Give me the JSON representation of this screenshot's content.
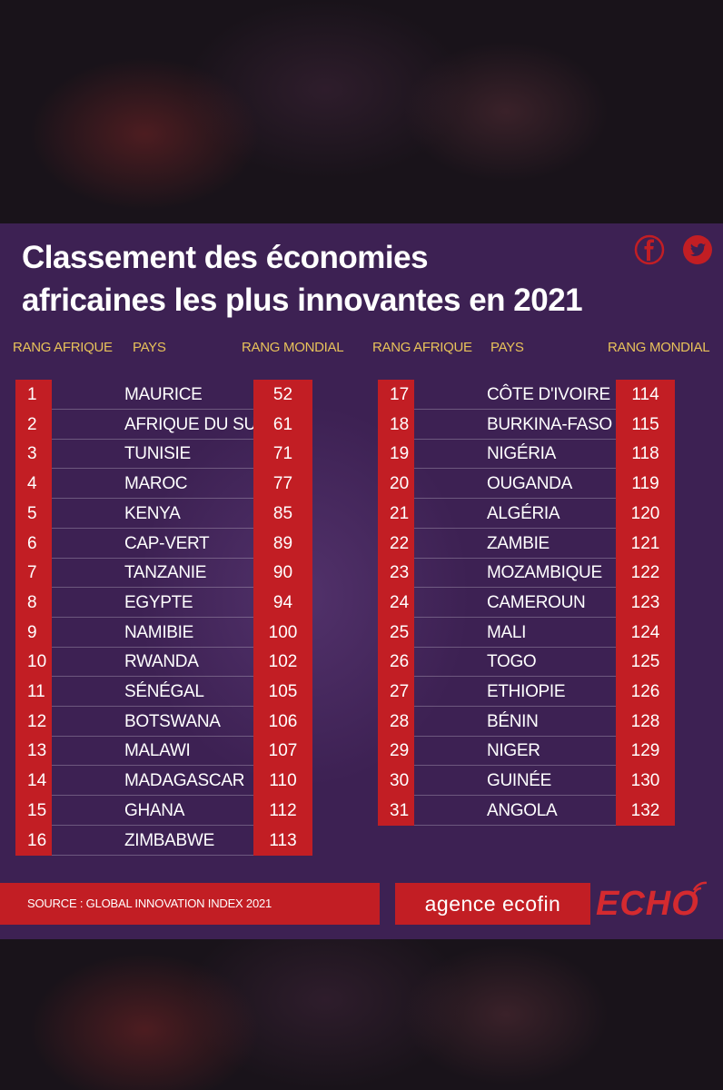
{
  "title_line1": "Classement des économies",
  "title_line2": "africaines les plus innovantes en 2021",
  "headers": {
    "rang_afrique": "RANG AFRIQUE",
    "pays": "PAYS",
    "rang_mondial": "RANG MONDIAL"
  },
  "left_rows": [
    {
      "rank": "1",
      "country": "MAURICE",
      "world": "52"
    },
    {
      "rank": "2",
      "country": "AFRIQUE DU SUD",
      "world": "61"
    },
    {
      "rank": "3",
      "country": "TUNISIE",
      "world": "71"
    },
    {
      "rank": "4",
      "country": "MAROC",
      "world": "77"
    },
    {
      "rank": "5",
      "country": "KENYA",
      "world": "85"
    },
    {
      "rank": "6",
      "country": "CAP-VERT",
      "world": "89"
    },
    {
      "rank": "7",
      "country": "TANZANIE",
      "world": "90"
    },
    {
      "rank": "8",
      "country": "EGYPTE",
      "world": "94"
    },
    {
      "rank": "9",
      "country": "NAMIBIE",
      "world": "100"
    },
    {
      "rank": "10",
      "country": "RWANDA",
      "world": "102"
    },
    {
      "rank": "11",
      "country": "SÉNÉGAL",
      "world": "105"
    },
    {
      "rank": "12",
      "country": "BOTSWANA",
      "world": "106"
    },
    {
      "rank": "13",
      "country": "MALAWI",
      "world": "107"
    },
    {
      "rank": "14",
      "country": "MADAGASCAR",
      "world": "110"
    },
    {
      "rank": "15",
      "country": "GHANA",
      "world": "112"
    },
    {
      "rank": "16",
      "country": "ZIMBABWE",
      "world": "113"
    }
  ],
  "right_rows": [
    {
      "rank": "17",
      "country": "CÔTE D'IVOIRE",
      "world": "114"
    },
    {
      "rank": "18",
      "country": "BURKINA-FASO",
      "world": "115"
    },
    {
      "rank": "19",
      "country": "NIGÉRIA",
      "world": "118"
    },
    {
      "rank": "20",
      "country": "OUGANDA",
      "world": "119"
    },
    {
      "rank": "21",
      "country": "ALGÉRIA",
      "world": "120"
    },
    {
      "rank": "22",
      "country": "ZAMBIE",
      "world": "121"
    },
    {
      "rank": "23",
      "country": "MOZAMBIQUE",
      "world": "122"
    },
    {
      "rank": "24",
      "country": "CAMEROUN",
      "world": "123"
    },
    {
      "rank": "25",
      "country": "MALI",
      "world": "124"
    },
    {
      "rank": "26",
      "country": "TOGO",
      "world": "125"
    },
    {
      "rank": "27",
      "country": "ETHIOPIE",
      "world": "126"
    },
    {
      "rank": "28",
      "country": "BÉNIN",
      "world": "128"
    },
    {
      "rank": "29",
      "country": "NIGER",
      "world": "129"
    },
    {
      "rank": "30",
      "country": "GUINÉE",
      "world": "130"
    },
    {
      "rank": "31",
      "country": "ANGOLA",
      "world": "132"
    }
  ],
  "source": "SOURCE : GLOBAL INNOVATION INDEX 2021",
  "brand_ecofin": "agence ecofin",
  "brand_echo": "ECHO",
  "icons": {
    "facebook": "facebook-icon",
    "twitter": "twitter-icon"
  },
  "colors": {
    "background": "#3d2153",
    "accent_red": "#c21e24",
    "header_gold": "#e8c25a"
  }
}
